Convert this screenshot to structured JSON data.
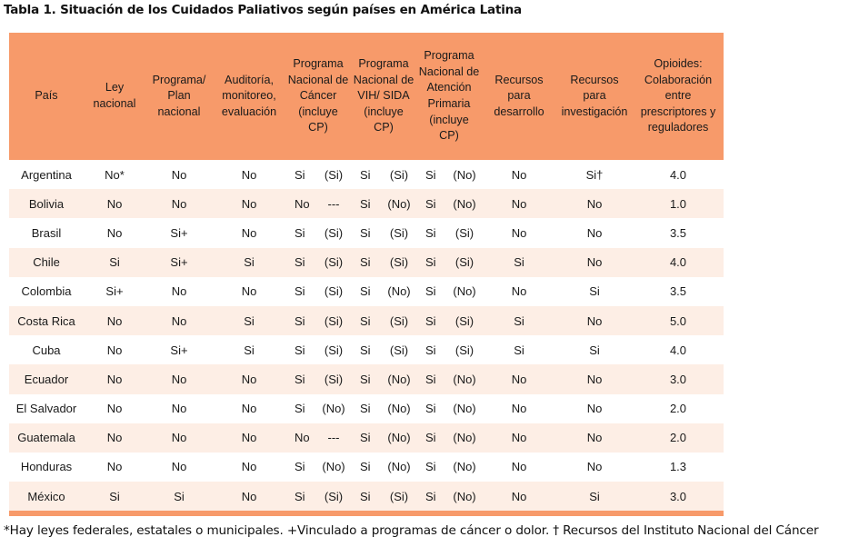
{
  "title": "Tabla 1. Situación de los Cuidados Paliativos según países en América Latina",
  "colors": {
    "header_bg": "#f79a6a",
    "stripe_bg": "#fdeee5"
  },
  "headers": [
    "País",
    "Ley nacional",
    "Programa/ Plan nacional",
    "Auditoría, monitoreo, evaluación",
    "Programa Nacional de Cáncer (incluye CP)",
    "Programa Nacional de VIH/ SIDA (incluye CP)",
    "Programa Nacional de Atención Primaria (incluye CP)",
    "Recursos para desarrollo",
    "Recursos para investigación",
    "Opioides: Colaboración entre prescriptores y reguladores"
  ],
  "rows": [
    {
      "pais": "Argentina",
      "ley": "No*",
      "plan": "No",
      "auditoria": "No",
      "cancer": [
        "Si",
        "(Si)"
      ],
      "vih": [
        "Si",
        "(Si)"
      ],
      "primaria": [
        "Si",
        "(No)"
      ],
      "desarrollo": "No",
      "investigacion": "Si†",
      "opioides": "4.0"
    },
    {
      "pais": "Bolivia",
      "ley": "No",
      "plan": "No",
      "auditoria": "No",
      "cancer": [
        "No",
        "---"
      ],
      "vih": [
        "Si",
        "(No)"
      ],
      "primaria": [
        "Si",
        "(No)"
      ],
      "desarrollo": "No",
      "investigacion": "No",
      "opioides": "1.0"
    },
    {
      "pais": "Brasil",
      "ley": "No",
      "plan": "Si+",
      "auditoria": "No",
      "cancer": [
        "Si",
        "(Si)"
      ],
      "vih": [
        "Si",
        "(Si)"
      ],
      "primaria": [
        "Si",
        "(Si)"
      ],
      "desarrollo": "No",
      "investigacion": "No",
      "opioides": "3.5"
    },
    {
      "pais": "Chile",
      "ley": "Si",
      "plan": "Si+",
      "auditoria": "Si",
      "cancer": [
        "Si",
        "(Si)"
      ],
      "vih": [
        "Si",
        "(Si)"
      ],
      "primaria": [
        "Si",
        "(Si)"
      ],
      "desarrollo": "Si",
      "investigacion": "No",
      "opioides": "4.0"
    },
    {
      "pais": "Colombia",
      "ley": "Si+",
      "plan": "No",
      "auditoria": "No",
      "cancer": [
        "Si",
        "(Si)"
      ],
      "vih": [
        "Si",
        "(No)"
      ],
      "primaria": [
        "Si",
        "(No)"
      ],
      "desarrollo": "No",
      "investigacion": "Si",
      "opioides": "3.5"
    },
    {
      "pais": "Costa Rica",
      "ley": "No",
      "plan": "No",
      "auditoria": "Si",
      "cancer": [
        "Si",
        "(Si)"
      ],
      "vih": [
        "Si",
        "(Si)"
      ],
      "primaria": [
        "Si",
        "(Si)"
      ],
      "desarrollo": "Si",
      "investigacion": "No",
      "opioides": "5.0"
    },
    {
      "pais": "Cuba",
      "ley": "No",
      "plan": "Si+",
      "auditoria": "Si",
      "cancer": [
        "Si",
        "(Si)"
      ],
      "vih": [
        "Si",
        "(Si)"
      ],
      "primaria": [
        "Si",
        "(Si)"
      ],
      "desarrollo": "Si",
      "investigacion": "Si",
      "opioides": "4.0"
    },
    {
      "pais": "Ecuador",
      "ley": "No",
      "plan": "No",
      "auditoria": "No",
      "cancer": [
        "Si",
        "(Si)"
      ],
      "vih": [
        "Si",
        "(No)"
      ],
      "primaria": [
        "Si",
        "(No)"
      ],
      "desarrollo": "No",
      "investigacion": "No",
      "opioides": "3.0"
    },
    {
      "pais": "El Salvador",
      "ley": "No",
      "plan": "No",
      "auditoria": "No",
      "cancer": [
        "Si",
        "(No)"
      ],
      "vih": [
        "Si",
        "(No)"
      ],
      "primaria": [
        "Si",
        "(No)"
      ],
      "desarrollo": "No",
      "investigacion": "No",
      "opioides": "2.0"
    },
    {
      "pais": "Guatemala",
      "ley": "No",
      "plan": "No",
      "auditoria": "No",
      "cancer": [
        "No",
        "---"
      ],
      "vih": [
        "Si",
        "(No)"
      ],
      "primaria": [
        "Si",
        "(No)"
      ],
      "desarrollo": "No",
      "investigacion": "No",
      "opioides": "2.0"
    },
    {
      "pais": "Honduras",
      "ley": "No",
      "plan": "No",
      "auditoria": "No",
      "cancer": [
        "Si",
        "(No)"
      ],
      "vih": [
        "Si",
        "(No)"
      ],
      "primaria": [
        "Si",
        "(No)"
      ],
      "desarrollo": "No",
      "investigacion": "No",
      "opioides": "1.3"
    },
    {
      "pais": "México",
      "ley": "Si",
      "plan": "Si",
      "auditoria": "No",
      "cancer": [
        "Si",
        "(Si)"
      ],
      "vih": [
        "Si",
        "(Si)"
      ],
      "primaria": [
        "Si",
        "(No)"
      ],
      "desarrollo": "No",
      "investigacion": "Si",
      "opioides": "3.0"
    }
  ],
  "footnote": "*Hay leyes federales, estatales o municipales. +Vinculado a programas de cáncer o dolor. † Recursos del Instituto Nacional del Cáncer"
}
